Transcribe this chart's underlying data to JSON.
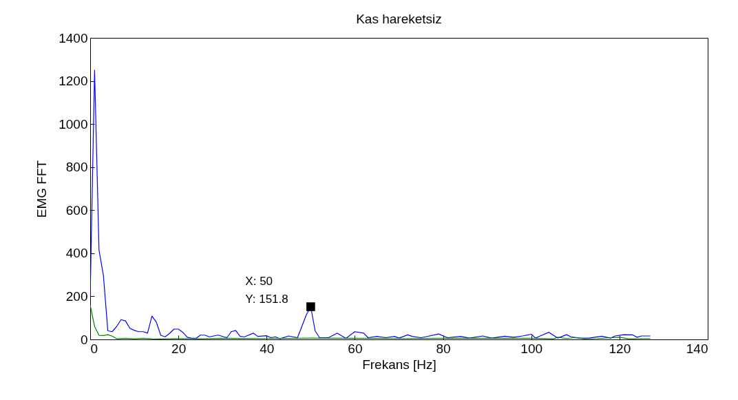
{
  "chart_data": {
    "type": "line",
    "title": "Kas hareketsiz",
    "xlabel": "Frekans [Hz]",
    "ylabel": "EMG FFT",
    "xlim": [
      0,
      140
    ],
    "xticks": [
      0,
      20,
      40,
      60,
      80,
      100,
      120,
      140
    ],
    "ylim": [
      0,
      1400
    ],
    "yticks": [
      0,
      200,
      400,
      600,
      800,
      1000,
      1200,
      1400
    ],
    "grid": false,
    "marker": "none",
    "line_style": "solid",
    "annotations": [
      {
        "text": "X: 50\nY: 151.8",
        "x": 50,
        "y": 151.8
      }
    ],
    "series": [
      {
        "color": "#0000ff",
        "x": [
          0,
          1,
          2,
          3,
          4,
          5,
          6,
          7,
          8,
          9,
          10,
          11,
          12,
          13,
          14,
          15,
          16,
          17,
          18,
          19,
          20,
          21,
          22,
          23,
          24,
          25,
          26,
          27,
          29,
          31,
          32,
          33,
          34,
          35,
          37,
          38,
          40,
          41,
          42,
          43,
          45,
          47,
          49,
          50,
          51,
          52,
          54,
          56,
          58,
          60,
          62,
          63,
          65,
          67,
          69,
          70,
          72,
          73,
          75,
          76,
          79,
          81,
          84,
          86,
          89,
          91,
          94,
          96,
          98,
          100,
          101,
          102,
          104,
          106,
          108,
          109,
          111,
          113,
          116,
          118,
          119,
          121,
          123,
          124,
          125,
          127
        ],
        "values": [
          200,
          1250,
          415,
          297,
          40,
          36,
          60,
          92,
          86,
          52,
          42,
          36,
          36,
          29,
          108,
          80,
          19,
          12,
          28,
          48,
          48,
          33,
          10,
          5,
          5,
          20,
          20,
          12,
          20,
          8,
          36,
          41,
          14,
          12,
          29,
          14,
          17,
          8,
          12,
          3,
          16,
          8,
          114,
          151.8,
          40,
          8,
          8,
          29,
          5,
          36,
          29,
          8,
          14,
          8,
          14,
          6,
          21,
          14,
          8,
          12,
          25,
          8,
          14,
          6,
          16,
          6,
          15,
          10,
          16,
          24,
          6,
          16,
          33,
          6,
          22,
          12,
          6,
          6,
          15,
          6,
          16,
          22,
          21,
          10,
          16,
          16
        ]
      },
      {
        "color": "#008000",
        "x": [
          0,
          1,
          2,
          3,
          4,
          5,
          6,
          8,
          10,
          12,
          14,
          16,
          20,
          25,
          30,
          40,
          50,
          60,
          70,
          80,
          90,
          100,
          105,
          106,
          108,
          110,
          112,
          115,
          120,
          122,
          127
        ],
        "values": [
          160,
          60,
          19,
          18,
          22,
          15,
          3,
          5,
          3,
          5,
          3,
          2,
          4,
          3,
          5,
          4,
          6,
          5,
          4,
          5,
          5,
          5,
          3,
          10,
          4,
          8,
          3,
          4,
          10,
          3,
          4
        ]
      }
    ]
  }
}
